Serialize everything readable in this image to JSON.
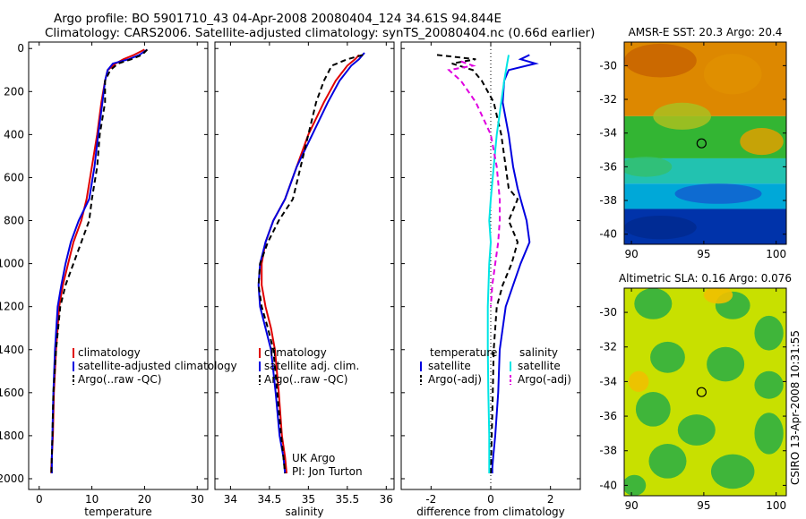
{
  "header": {
    "line1": "Argo profile: BO 5901710_43 04-Apr-2008 20080404_124 34.61S 94.844E",
    "line2": "Climatology: CARS2006. Satellite-adjusted climatology: synTS_20080404.nc (0.66d earlier)"
  },
  "side_stamp": "CSIRO 13-Apr-2008 10:31:55",
  "colors": {
    "red": "#e00000",
    "blue": "#0000e0",
    "black": "#000000",
    "cyan": "#00e5e5",
    "magenta": "#e000e0"
  },
  "chart_data": [
    {
      "type": "line",
      "id": "temperature",
      "xlabel": "temperature",
      "xlim": [
        -2,
        32
      ],
      "ylim": [
        2050,
        -30
      ],
      "xticks": [
        0,
        10,
        20,
        30
      ],
      "yticks": [
        0,
        200,
        400,
        600,
        800,
        1000,
        1200,
        1400,
        1600,
        1800,
        2000
      ],
      "legend": [
        "climatology",
        "satellite-adjusted climatology",
        "Argo(..raw -QC)"
      ],
      "series": [
        {
          "name": "climatology",
          "color": "red",
          "dash": "solid",
          "x": [
            20.0,
            18.0,
            16.0,
            14.5,
            13.0,
            12.5,
            11.8,
            11.0,
            10.0,
            9.0,
            8.0,
            6.5,
            5.5,
            4.5,
            3.8,
            3.2,
            2.8,
            2.6,
            2.4,
            2.3,
            2.3
          ],
          "y": [
            5,
            30,
            50,
            70,
            100,
            150,
            250,
            400,
            550,
            700,
            800,
            900,
            1000,
            1100,
            1200,
            1400,
            1600,
            1800,
            1900,
            1950,
            1975
          ]
        },
        {
          "name": "satellite-adjusted climatology",
          "color": "blue",
          "dash": "solid",
          "x": [
            20.5,
            19.0,
            17.0,
            14.0,
            13.0,
            12.5,
            12.0,
            11.2,
            10.5,
            9.5,
            7.5,
            6.0,
            5.0,
            4.2,
            3.5,
            3.0,
            2.7,
            2.5,
            2.4,
            2.4
          ],
          "y": [
            5,
            30,
            50,
            70,
            100,
            150,
            250,
            400,
            550,
            700,
            800,
            900,
            1000,
            1100,
            1200,
            1400,
            1600,
            1800,
            1900,
            1975
          ]
        },
        {
          "name": "Argo(..raw -QC)",
          "color": "black",
          "dash": "dash",
          "x": [
            20.5,
            19.5,
            17.5,
            15.0,
            13.5,
            12.5,
            12.5,
            11.5,
            11.0,
            10.0,
            9.5,
            8.0,
            6.5,
            5.0,
            4.0,
            3.2,
            2.7,
            2.5,
            2.3
          ],
          "y": [
            5,
            30,
            50,
            70,
            100,
            150,
            250,
            400,
            550,
            700,
            800,
            900,
            1000,
            1100,
            1200,
            1400,
            1600,
            1800,
            1975
          ]
        }
      ]
    },
    {
      "type": "line",
      "id": "salinity",
      "xlabel": "salinity",
      "xlim": [
        33.8,
        36.1
      ],
      "ylim": [
        2050,
        -30
      ],
      "xticks": [
        34,
        34.5,
        35,
        35.5,
        36
      ],
      "yticks": [
        0,
        200,
        400,
        600,
        800,
        1000,
        1200,
        1400,
        1600,
        1800,
        2000
      ],
      "legend": [
        "climatology",
        "satellite adj. clim.",
        "Argo(..raw -QC)"
      ],
      "annotation": [
        "UK Argo",
        "PI: Jon Turton"
      ],
      "series": [
        {
          "name": "climatology",
          "color": "red",
          "dash": "solid",
          "x": [
            35.65,
            35.6,
            35.5,
            35.35,
            35.2,
            35.0,
            34.85,
            34.7,
            34.55,
            34.45,
            34.4,
            34.4,
            34.45,
            34.52,
            34.57,
            34.62,
            34.66,
            34.7,
            34.72
          ],
          "y": [
            30,
            50,
            80,
            150,
            250,
            400,
            550,
            700,
            800,
            900,
            1000,
            1100,
            1200,
            1300,
            1400,
            1600,
            1800,
            1900,
            1975
          ]
        },
        {
          "name": "satellite adj. clim.",
          "color": "blue",
          "dash": "solid",
          "x": [
            35.72,
            35.65,
            35.55,
            35.4,
            35.25,
            35.05,
            34.85,
            34.7,
            34.55,
            34.45,
            34.38,
            34.36,
            34.38,
            34.45,
            34.52,
            34.58,
            34.63,
            34.68,
            34.7
          ],
          "y": [
            20,
            50,
            80,
            150,
            250,
            400,
            550,
            700,
            800,
            900,
            1000,
            1100,
            1200,
            1300,
            1400,
            1600,
            1800,
            1900,
            1975
          ]
        },
        {
          "name": "Argo(..raw -QC)",
          "color": "black",
          "dash": "dash",
          "x": [
            35.7,
            35.5,
            35.3,
            35.2,
            35.1,
            35.0,
            34.9,
            34.8,
            34.62,
            34.48,
            34.38,
            34.36,
            34.4,
            34.48,
            34.55,
            34.6,
            34.65,
            34.68,
            34.7
          ],
          "y": [
            30,
            50,
            80,
            150,
            250,
            400,
            550,
            700,
            800,
            900,
            1000,
            1100,
            1200,
            1300,
            1400,
            1600,
            1800,
            1900,
            1975
          ]
        }
      ]
    },
    {
      "type": "line",
      "id": "difference",
      "xlabel": "difference from climatology",
      "xlim": [
        -3,
        3
      ],
      "ylim": [
        2050,
        -30
      ],
      "xticks": [
        -2,
        0,
        2
      ],
      "yticks": [
        0,
        200,
        400,
        600,
        800,
        1000,
        1200,
        1400,
        1600,
        1800,
        2000
      ],
      "legend_groups": [
        {
          "title": "temperature",
          "items": [
            "satellite",
            "Argo(-adj)"
          ]
        },
        {
          "title": "salinity",
          "items": [
            "satellite",
            "Argo(-adj)"
          ]
        }
      ],
      "series": [
        {
          "name": "satellite",
          "group": "temperature",
          "color": "blue",
          "dash": "solid",
          "x": [
            1.3,
            1.0,
            1.5,
            0.6,
            0.45,
            0.4,
            0.6,
            0.75,
            0.9,
            1.0,
            1.2,
            1.3,
            1.0,
            0.75,
            0.5,
            0.3,
            0.25,
            0.15,
            0.08,
            0.05,
            0.05
          ],
          "y": [
            30,
            50,
            70,
            100,
            150,
            250,
            400,
            550,
            650,
            700,
            800,
            900,
            1000,
            1100,
            1200,
            1400,
            1600,
            1800,
            1900,
            1950,
            1975
          ]
        },
        {
          "name": "Argo(-adj)",
          "group": "temperature",
          "color": "black",
          "dash": "dash",
          "x": [
            -1.8,
            -0.5,
            -1.3,
            -0.6,
            -0.3,
            0.1,
            0.35,
            0.5,
            0.6,
            0.9,
            0.6,
            0.9,
            0.7,
            0.4,
            0.2,
            0.1,
            0.05,
            0.0
          ],
          "y": [
            30,
            50,
            70,
            100,
            150,
            250,
            400,
            550,
            650,
            700,
            800,
            900,
            1000,
            1100,
            1200,
            1400,
            1700,
            1975
          ]
        },
        {
          "name": "satellite",
          "group": "salinity",
          "color": "cyan",
          "dash": "solid",
          "x": [
            0.6,
            0.55,
            0.45,
            0.35,
            0.2,
            0.1,
            0.0,
            -0.05,
            0.0,
            -0.05,
            -0.1,
            -0.1,
            -0.08,
            -0.05,
            -0.05
          ],
          "y": [
            30,
            70,
            150,
            250,
            400,
            550,
            700,
            800,
            900,
            1000,
            1200,
            1400,
            1600,
            1800,
            1975
          ]
        },
        {
          "name": "Argo(-adj)",
          "group": "salinity",
          "color": "magenta",
          "dash": "dash",
          "x": [
            -1.0,
            -0.6,
            -1.4,
            -1.0,
            -0.5,
            0.0,
            0.2,
            0.3,
            0.3,
            0.25,
            0.15,
            0.05,
            0.0
          ],
          "y": [
            60,
            80,
            100,
            150,
            250,
            400,
            550,
            700,
            800,
            900,
            1000,
            1100,
            1200
          ]
        }
      ]
    },
    {
      "type": "heatmap",
      "id": "sst-map",
      "title": "AMSR-E SST: 20.3 Argo: 20.4",
      "xlim": [
        89.5,
        100.7
      ],
      "ylim": [
        -40.6,
        -28.6
      ],
      "xticks": [
        90,
        95,
        100
      ],
      "yticks": [
        -30,
        -32,
        -34,
        -36,
        -38,
        -40
      ],
      "marker": {
        "lon": 94.844,
        "lat": -34.61
      },
      "bands": [
        {
          "from_lat": -28.6,
          "to_lat": -33.0,
          "color": "#dd8800"
        },
        {
          "from_lat": -33.0,
          "to_lat": -35.5,
          "color": "#33b533"
        },
        {
          "from_lat": -35.5,
          "to_lat": -37.0,
          "color": "#22c2b0"
        },
        {
          "from_lat": -37.0,
          "to_lat": -38.5,
          "color": "#00a8d8"
        },
        {
          "from_lat": -38.5,
          "to_lat": -40.6,
          "color": "#0033aa"
        }
      ]
    },
    {
      "type": "heatmap",
      "id": "sla-map",
      "title": "Altimetric SLA: 0.16 Argo: 0.076",
      "xlim": [
        89.5,
        100.7
      ],
      "ylim": [
        -40.6,
        -28.6
      ],
      "xticks": [
        90,
        95,
        100
      ],
      "yticks": [
        -30,
        -32,
        -34,
        -36,
        -38,
        -40
      ],
      "marker": {
        "lon": 94.844,
        "lat": -34.61
      },
      "bands": [
        {
          "from_lat": -28.6,
          "to_lat": -40.6,
          "color": "#c8e000"
        }
      ]
    }
  ]
}
